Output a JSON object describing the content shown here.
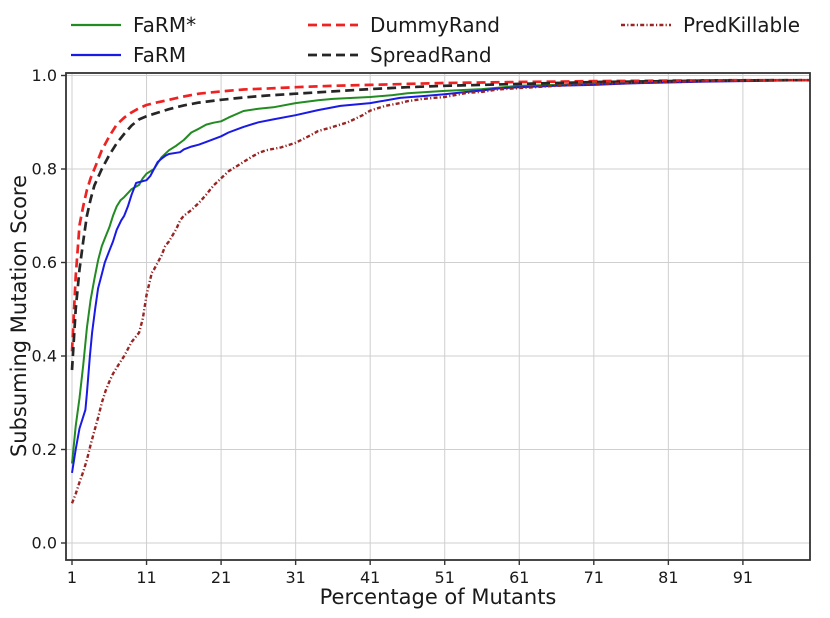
{
  "figure": {
    "background": "#ffffff",
    "text_color": "#1a1a1a"
  },
  "chart_data": {
    "type": "line",
    "title": "",
    "xlabel": "Percentage of Mutants",
    "ylabel": "Subsuming Mutation Score",
    "xlim": [
      1,
      100
    ],
    "ylim": [
      0,
      1
    ],
    "grid": true,
    "grid_color": "#cfcfcf",
    "spine_color": "#333333",
    "legend_position": "top, frameless, 3 columns",
    "x_ticks": [
      1,
      11,
      21,
      31,
      41,
      51,
      61,
      71,
      81,
      91
    ],
    "x_tick_labels": [
      "1",
      "11",
      "21",
      "31",
      "41",
      "51",
      "61",
      "71",
      "81",
      "91"
    ],
    "y_ticks": [
      0.0,
      0.2,
      0.4,
      0.6,
      0.8,
      1.0
    ],
    "y_tick_labels": [
      "0.0",
      "0.2",
      "0.4",
      "0.6",
      "0.8",
      "1.0"
    ],
    "series": [
      {
        "name": "FaRM*",
        "color": "#228b22",
        "style": "solid",
        "dash": null,
        "width": 2,
        "points": [
          [
            1,
            0.17
          ],
          [
            1.5,
            0.25
          ],
          [
            2,
            0.31
          ],
          [
            2.5,
            0.38
          ],
          [
            3,
            0.46
          ],
          [
            3.5,
            0.52
          ],
          [
            4,
            0.565
          ],
          [
            4.5,
            0.605
          ],
          [
            5,
            0.635
          ],
          [
            5.5,
            0.655
          ],
          [
            6,
            0.675
          ],
          [
            6.5,
            0.7
          ],
          [
            7,
            0.72
          ],
          [
            7.5,
            0.733
          ],
          [
            8,
            0.74
          ],
          [
            9,
            0.757
          ],
          [
            10,
            0.766
          ],
          [
            10.5,
            0.78
          ],
          [
            11,
            0.79
          ],
          [
            12,
            0.8
          ],
          [
            13,
            0.825
          ],
          [
            14,
            0.84
          ],
          [
            15,
            0.85
          ],
          [
            16,
            0.862
          ],
          [
            17,
            0.878
          ],
          [
            18,
            0.886
          ],
          [
            19,
            0.895
          ],
          [
            20,
            0.899
          ],
          [
            21,
            0.902
          ],
          [
            22,
            0.91
          ],
          [
            24,
            0.924
          ],
          [
            26,
            0.929
          ],
          [
            28,
            0.932
          ],
          [
            31,
            0.941
          ],
          [
            34,
            0.947
          ],
          [
            36,
            0.95
          ],
          [
            41,
            0.954
          ],
          [
            44,
            0.958
          ],
          [
            46,
            0.962
          ],
          [
            51,
            0.967
          ],
          [
            56,
            0.971
          ],
          [
            61,
            0.978
          ],
          [
            66,
            0.98
          ],
          [
            68,
            0.982
          ],
          [
            71,
            0.984
          ],
          [
            76,
            0.986
          ],
          [
            81,
            0.987
          ],
          [
            86,
            0.988
          ],
          [
            91,
            0.989
          ],
          [
            96,
            0.9895
          ],
          [
            100,
            0.99
          ]
        ]
      },
      {
        "name": "FaRM",
        "color": "#1a1ae6",
        "style": "solid",
        "dash": null,
        "width": 2,
        "points": [
          [
            1,
            0.15
          ],
          [
            1.5,
            0.2
          ],
          [
            2,
            0.245
          ],
          [
            2.5,
            0.27
          ],
          [
            2.8,
            0.285
          ],
          [
            3,
            0.32
          ],
          [
            3.4,
            0.4
          ],
          [
            3.7,
            0.45
          ],
          [
            4.1,
            0.5
          ],
          [
            4.5,
            0.545
          ],
          [
            5,
            0.575
          ],
          [
            5.4,
            0.6
          ],
          [
            6,
            0.625
          ],
          [
            6.5,
            0.645
          ],
          [
            7,
            0.67
          ],
          [
            7.6,
            0.69
          ],
          [
            8,
            0.7
          ],
          [
            8.5,
            0.72
          ],
          [
            9,
            0.745
          ],
          [
            9.6,
            0.77
          ],
          [
            10,
            0.772
          ],
          [
            11,
            0.776
          ],
          [
            11.5,
            0.785
          ],
          [
            12,
            0.8
          ],
          [
            12.5,
            0.815
          ],
          [
            13,
            0.822
          ],
          [
            13.5,
            0.828
          ],
          [
            14,
            0.832
          ],
          [
            15.5,
            0.836
          ],
          [
            16,
            0.842
          ],
          [
            17,
            0.848
          ],
          [
            18,
            0.852
          ],
          [
            19,
            0.858
          ],
          [
            21,
            0.87
          ],
          [
            22,
            0.878
          ],
          [
            24,
            0.89
          ],
          [
            26,
            0.9
          ],
          [
            28,
            0.906
          ],
          [
            31,
            0.915
          ],
          [
            34,
            0.926
          ],
          [
            37,
            0.935
          ],
          [
            41,
            0.941
          ],
          [
            45,
            0.952
          ],
          [
            48,
            0.956
          ],
          [
            51,
            0.96
          ],
          [
            54,
            0.965
          ],
          [
            56,
            0.968
          ],
          [
            58,
            0.972
          ],
          [
            61,
            0.975
          ],
          [
            66,
            0.978
          ],
          [
            71,
            0.98
          ],
          [
            76,
            0.983
          ],
          [
            81,
            0.985
          ],
          [
            86,
            0.987
          ],
          [
            91,
            0.988
          ],
          [
            96,
            0.989
          ],
          [
            100,
            0.99
          ]
        ]
      },
      {
        "name": "DummyRand",
        "color": "#ee2222",
        "style": "dashed",
        "dash": "9,5",
        "width": 2.7,
        "points": [
          [
            1,
            0.41
          ],
          [
            1.5,
            0.57
          ],
          [
            2,
            0.68
          ],
          [
            2.5,
            0.72
          ],
          [
            3,
            0.755
          ],
          [
            3.5,
            0.78
          ],
          [
            4,
            0.8
          ],
          [
            5,
            0.84
          ],
          [
            6,
            0.87
          ],
          [
            7,
            0.895
          ],
          [
            8,
            0.91
          ],
          [
            9,
            0.921
          ],
          [
            10,
            0.93
          ],
          [
            11,
            0.937
          ],
          [
            12,
            0.941
          ],
          [
            14,
            0.948
          ],
          [
            16,
            0.955
          ],
          [
            18,
            0.961
          ],
          [
            21,
            0.966
          ],
          [
            24,
            0.97
          ],
          [
            27,
            0.972
          ],
          [
            31,
            0.975
          ],
          [
            36,
            0.978
          ],
          [
            41,
            0.98
          ],
          [
            46,
            0.982
          ],
          [
            51,
            0.984
          ],
          [
            56,
            0.985
          ],
          [
            61,
            0.986
          ],
          [
            66,
            0.987
          ],
          [
            71,
            0.988
          ],
          [
            76,
            0.9885
          ],
          [
            81,
            0.989
          ],
          [
            86,
            0.9895
          ],
          [
            91,
            0.99
          ],
          [
            96,
            0.99
          ],
          [
            100,
            0.99
          ]
        ]
      },
      {
        "name": "SpreadRand",
        "color": "#262626",
        "style": "dashed",
        "dash": "9,5",
        "width": 2.7,
        "points": [
          [
            1,
            0.37
          ],
          [
            1.5,
            0.5
          ],
          [
            2,
            0.585
          ],
          [
            2.5,
            0.645
          ],
          [
            3,
            0.7
          ],
          [
            3.5,
            0.735
          ],
          [
            4,
            0.765
          ],
          [
            5,
            0.8
          ],
          [
            6,
            0.83
          ],
          [
            7,
            0.855
          ],
          [
            8,
            0.875
          ],
          [
            9,
            0.893
          ],
          [
            10,
            0.906
          ],
          [
            11,
            0.913
          ],
          [
            12,
            0.918
          ],
          [
            14,
            0.928
          ],
          [
            16,
            0.936
          ],
          [
            18,
            0.942
          ],
          [
            21,
            0.948
          ],
          [
            24,
            0.953
          ],
          [
            27,
            0.957
          ],
          [
            31,
            0.961
          ],
          [
            36,
            0.966
          ],
          [
            41,
            0.971
          ],
          [
            46,
            0.975
          ],
          [
            51,
            0.978
          ],
          [
            56,
            0.98
          ],
          [
            61,
            0.982
          ],
          [
            66,
            0.984
          ],
          [
            71,
            0.986
          ],
          [
            76,
            0.987
          ],
          [
            81,
            0.988
          ],
          [
            86,
            0.989
          ],
          [
            91,
            0.9895
          ],
          [
            96,
            0.99
          ],
          [
            100,
            0.99
          ]
        ]
      },
      {
        "name": "PredKillable",
        "color": "#992424",
        "style": "dashdot",
        "dash": "4,2.2,1.2,2.2",
        "width": 2.4,
        "points": [
          [
            1,
            0.085
          ],
          [
            1.5,
            0.105
          ],
          [
            2,
            0.13
          ],
          [
            2.5,
            0.152
          ],
          [
            3,
            0.178
          ],
          [
            3.5,
            0.21
          ],
          [
            4,
            0.24
          ],
          [
            4.5,
            0.268
          ],
          [
            5,
            0.3
          ],
          [
            5.5,
            0.325
          ],
          [
            6,
            0.345
          ],
          [
            6.5,
            0.362
          ],
          [
            7,
            0.375
          ],
          [
            7.5,
            0.388
          ],
          [
            8,
            0.4
          ],
          [
            9,
            0.43
          ],
          [
            10,
            0.45
          ],
          [
            10.5,
            0.48
          ],
          [
            11,
            0.53
          ],
          [
            11.7,
            0.578
          ],
          [
            12,
            0.585
          ],
          [
            13,
            0.615
          ],
          [
            13.5,
            0.635
          ],
          [
            14,
            0.645
          ],
          [
            15,
            0.672
          ],
          [
            15.5,
            0.69
          ],
          [
            16,
            0.7
          ],
          [
            17,
            0.712
          ],
          [
            18,
            0.727
          ],
          [
            19,
            0.745
          ],
          [
            20,
            0.765
          ],
          [
            21,
            0.78
          ],
          [
            22,
            0.795
          ],
          [
            24,
            0.815
          ],
          [
            25,
            0.825
          ],
          [
            26,
            0.834
          ],
          [
            27,
            0.84
          ],
          [
            29,
            0.846
          ],
          [
            31,
            0.856
          ],
          [
            33,
            0.872
          ],
          [
            34,
            0.881
          ],
          [
            36,
            0.89
          ],
          [
            38,
            0.9
          ],
          [
            40,
            0.915
          ],
          [
            41,
            0.925
          ],
          [
            43,
            0.935
          ],
          [
            45,
            0.941
          ],
          [
            46,
            0.945
          ],
          [
            48,
            0.95
          ],
          [
            51,
            0.954
          ],
          [
            54,
            0.963
          ],
          [
            56,
            0.965
          ],
          [
            58,
            0.97
          ],
          [
            61,
            0.973
          ],
          [
            66,
            0.978
          ],
          [
            71,
            0.982
          ],
          [
            76,
            0.984
          ],
          [
            81,
            0.986
          ],
          [
            86,
            0.988
          ],
          [
            91,
            0.989
          ],
          [
            96,
            0.99
          ],
          [
            100,
            0.99
          ]
        ]
      }
    ]
  }
}
